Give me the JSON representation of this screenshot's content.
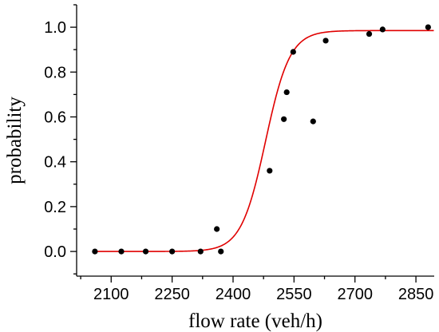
{
  "chart_data": {
    "type": "scatter",
    "title": "",
    "xlabel": "flow rate (veh/h)",
    "ylabel": "probability",
    "xlim": [
      2015,
      2895
    ],
    "ylim": [
      -0.11,
      1.1
    ],
    "x_ticks": [
      2100,
      2250,
      2400,
      2550,
      2700,
      2850
    ],
    "x_tick_labels": [
      "2100",
      "2250",
      "2400",
      "2550",
      "2700",
      "2850"
    ],
    "y_ticks": [
      0.0,
      0.2,
      0.4,
      0.6,
      0.8,
      1.0
    ],
    "y_tick_labels": [
      "0.0",
      "0.2",
      "0.4",
      "0.6",
      "0.8",
      "1.0"
    ],
    "grid": false,
    "series": [
      {
        "type": "scatter",
        "color": "#000000",
        "points": [
          {
            "x": 2060,
            "y": 0.0
          },
          {
            "x": 2125,
            "y": 0.0
          },
          {
            "x": 2185,
            "y": 0.0
          },
          {
            "x": 2250,
            "y": 0.0
          },
          {
            "x": 2320,
            "y": 0.0
          },
          {
            "x": 2360,
            "y": 0.1
          },
          {
            "x": 2370,
            "y": 0.0
          },
          {
            "x": 2490,
            "y": 0.36
          },
          {
            "x": 2525,
            "y": 0.59
          },
          {
            "x": 2532,
            "y": 0.71
          },
          {
            "x": 2548,
            "y": 0.89
          },
          {
            "x": 2597,
            "y": 0.58
          },
          {
            "x": 2628,
            "y": 0.94
          },
          {
            "x": 2735,
            "y": 0.97
          },
          {
            "x": 2768,
            "y": 0.99
          },
          {
            "x": 2880,
            "y": 1.0
          }
        ]
      },
      {
        "type": "line",
        "color": "#e00000",
        "curve": "logistic",
        "lower": 0.0,
        "upper": 0.985,
        "midpoint": 2480,
        "scale": 30,
        "x_range": [
          2060,
          2895
        ]
      }
    ]
  }
}
